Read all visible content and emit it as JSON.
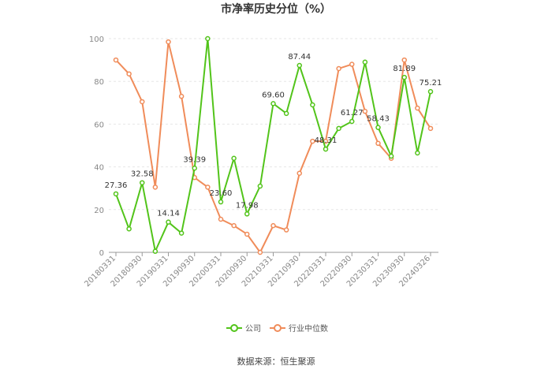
{
  "chart_data": {
    "type": "line",
    "title": "市净率历史分位（%）",
    "ylim": [
      0,
      100
    ],
    "yticks": [
      0,
      20,
      40,
      60,
      80,
      100
    ],
    "grid": true,
    "legend_placement": "bottom-center",
    "x_tick_labels": [
      "20180331",
      "20180930",
      "20190331",
      "20190930",
      "20200331",
      "20200930",
      "20210331",
      "20210930",
      "20220331",
      "20220930",
      "20230331",
      "20230930",
      "20240326"
    ],
    "series": [
      {
        "name": "公司",
        "color": "#52c41a",
        "values": [
          27.36,
          11,
          32.58,
          0.5,
          14.14,
          9,
          39.39,
          100,
          23.6,
          44,
          17.98,
          31,
          69.6,
          65,
          87.44,
          69,
          48.31,
          58,
          61.27,
          89,
          58.43,
          45,
          81.89,
          46.5,
          75.21
        ]
      },
      {
        "name": "行业中位数",
        "color": "#f08c5a",
        "values": [
          90,
          83.5,
          70.5,
          30.5,
          98.5,
          73,
          35,
          30.5,
          15.5,
          12.5,
          8.5,
          0,
          12.5,
          10.5,
          37,
          52,
          52,
          86,
          88,
          66,
          51,
          44,
          90,
          67.5,
          58
        ]
      }
    ],
    "data_labels": [
      {
        "index": 0,
        "text": "27.36"
      },
      {
        "index": 2,
        "text": "32.58"
      },
      {
        "index": 4,
        "text": "14.14"
      },
      {
        "index": 6,
        "text": "39.39"
      },
      {
        "index": 8,
        "text": "23.60"
      },
      {
        "index": 10,
        "text": "17.98"
      },
      {
        "index": 12,
        "text": "69.60"
      },
      {
        "index": 14,
        "text": "87.44"
      },
      {
        "index": 16,
        "text": "48.31"
      },
      {
        "index": 18,
        "text": "61.27"
      },
      {
        "index": 20,
        "text": "58.43"
      },
      {
        "index": 22,
        "text": "81.89"
      },
      {
        "index": 24,
        "text": "75.21"
      }
    ]
  },
  "source": "数据来源：恒生聚源"
}
